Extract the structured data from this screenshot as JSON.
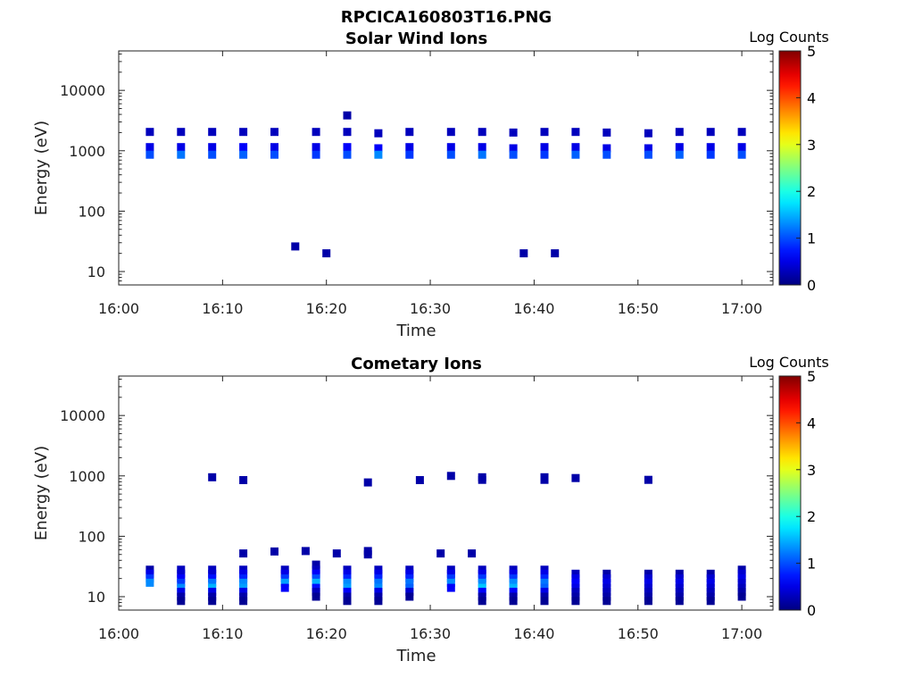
{
  "figure": {
    "title": "RPCICA160803T16.PNG"
  },
  "chart_data": [
    {
      "type": "heatmap",
      "title": "Solar Wind Ions",
      "xlabel": "Time",
      "ylabel": "Energy (eV)",
      "xlim": [
        "16:00",
        "17:03"
      ],
      "ylim": [
        6,
        45000
      ],
      "yscale": "log",
      "x_ticks": [
        "16:00",
        "16:10",
        "16:20",
        "16:30",
        "16:40",
        "16:50",
        "17:00"
      ],
      "y_ticks": [
        "10",
        "100",
        "1000",
        "10000"
      ],
      "colorbar": {
        "label": "Log Counts",
        "min": 0,
        "max": 5,
        "ticks": [
          "0",
          "1",
          "2",
          "3",
          "4",
          "5"
        ],
        "colormap": "jet"
      },
      "cells": [
        {
          "t": "16:03",
          "e": [
            2050,
            1150
          ],
          "v": [
            0.3,
            0.5
          ]
        },
        {
          "t": "16:03",
          "e": [
            860
          ],
          "v": [
            1.0
          ]
        },
        {
          "t": "16:06",
          "e": [
            2050,
            1150
          ],
          "v": [
            0.3,
            0.5
          ]
        },
        {
          "t": "16:06",
          "e": [
            860
          ],
          "v": [
            1.2
          ]
        },
        {
          "t": "16:09",
          "e": [
            2050,
            1150
          ],
          "v": [
            0.3,
            0.5
          ]
        },
        {
          "t": "16:09",
          "e": [
            860
          ],
          "v": [
            1.0
          ]
        },
        {
          "t": "16:12",
          "e": [
            2050,
            1150
          ],
          "v": [
            0.3,
            0.6
          ]
        },
        {
          "t": "16:12",
          "e": [
            860
          ],
          "v": [
            1.1
          ]
        },
        {
          "t": "16:15",
          "e": [
            2050,
            1150
          ],
          "v": [
            0.3,
            0.5
          ]
        },
        {
          "t": "16:15",
          "e": [
            860
          ],
          "v": [
            1.0
          ]
        },
        {
          "t": "16:19",
          "e": [
            2050,
            1150
          ],
          "v": [
            0.3,
            0.5
          ]
        },
        {
          "t": "16:19",
          "e": [
            860
          ],
          "v": [
            0.9
          ]
        },
        {
          "t": "16:22",
          "e": [
            3850
          ],
          "v": [
            0.2
          ]
        },
        {
          "t": "16:22",
          "e": [
            2050,
            1150
          ],
          "v": [
            0.3,
            0.6
          ]
        },
        {
          "t": "16:22",
          "e": [
            860
          ],
          "v": [
            1.0
          ]
        },
        {
          "t": "16:25",
          "e": [
            1950,
            1100
          ],
          "v": [
            0.3,
            0.6
          ]
        },
        {
          "t": "16:25",
          "e": [
            860
          ],
          "v": [
            1.3
          ]
        },
        {
          "t": "16:28",
          "e": [
            2050,
            1150
          ],
          "v": [
            0.3,
            0.5
          ]
        },
        {
          "t": "16:28",
          "e": [
            860
          ],
          "v": [
            0.9
          ]
        },
        {
          "t": "16:32",
          "e": [
            2050,
            1150
          ],
          "v": [
            0.3,
            0.5
          ]
        },
        {
          "t": "16:32",
          "e": [
            860
          ],
          "v": [
            1.0
          ]
        },
        {
          "t": "16:35",
          "e": [
            2050,
            1150
          ],
          "v": [
            0.3,
            0.5
          ]
        },
        {
          "t": "16:35",
          "e": [
            860
          ],
          "v": [
            1.2
          ]
        },
        {
          "t": "16:38",
          "e": [
            2000,
            1100
          ],
          "v": [
            0.3,
            0.5
          ]
        },
        {
          "t": "16:38",
          "e": [
            860
          ],
          "v": [
            1.0
          ]
        },
        {
          "t": "16:41",
          "e": [
            2050,
            1150
          ],
          "v": [
            0.3,
            0.5
          ]
        },
        {
          "t": "16:41",
          "e": [
            860
          ],
          "v": [
            0.9
          ]
        },
        {
          "t": "16:44",
          "e": [
            2050,
            1150
          ],
          "v": [
            0.3,
            0.5
          ]
        },
        {
          "t": "16:44",
          "e": [
            860
          ],
          "v": [
            1.1
          ]
        },
        {
          "t": "16:47",
          "e": [
            2000,
            1100
          ],
          "v": [
            0.3,
            0.5
          ]
        },
        {
          "t": "16:47",
          "e": [
            860
          ],
          "v": [
            1.0
          ]
        },
        {
          "t": "16:51",
          "e": [
            1950,
            1100
          ],
          "v": [
            0.3,
            0.5
          ]
        },
        {
          "t": "16:51",
          "e": [
            860
          ],
          "v": [
            1.0
          ]
        },
        {
          "t": "16:54",
          "e": [
            2050,
            1150
          ],
          "v": [
            0.3,
            0.5
          ]
        },
        {
          "t": "16:54",
          "e": [
            860
          ],
          "v": [
            1.1
          ]
        },
        {
          "t": "16:57",
          "e": [
            2050,
            1150
          ],
          "v": [
            0.3,
            0.5
          ]
        },
        {
          "t": "16:57",
          "e": [
            860
          ],
          "v": [
            0.9
          ]
        },
        {
          "t": "17:00",
          "e": [
            2050,
            1150
          ],
          "v": [
            0.3,
            0.5
          ]
        },
        {
          "t": "17:00",
          "e": [
            860
          ],
          "v": [
            1.0
          ]
        },
        {
          "t": "16:17",
          "e": [
            26
          ],
          "v": [
            0.2
          ]
        },
        {
          "t": "16:20",
          "e": [
            20
          ],
          "v": [
            0.2
          ]
        },
        {
          "t": "16:39",
          "e": [
            20
          ],
          "v": [
            0.2
          ]
        },
        {
          "t": "16:42",
          "e": [
            20
          ],
          "v": [
            0.2
          ]
        }
      ]
    },
    {
      "type": "heatmap",
      "title": "Cometary Ions",
      "xlabel": "Time",
      "ylabel": "Energy (eV)",
      "xlim": [
        "16:00",
        "17:03"
      ],
      "ylim": [
        6,
        45000
      ],
      "yscale": "log",
      "x_ticks": [
        "16:00",
        "16:10",
        "16:20",
        "16:30",
        "16:40",
        "16:50",
        "17:00"
      ],
      "y_ticks": [
        "10",
        "100",
        "1000",
        "10000"
      ],
      "colorbar": {
        "label": "Log Counts",
        "min": 0,
        "max": 5,
        "ticks": [
          "0",
          "1",
          "2",
          "3",
          "4",
          "5"
        ],
        "colormap": "jet"
      },
      "cells": [
        {
          "t": "16:03",
          "e": [
            28,
            24,
            20,
            17
          ],
          "v": [
            0.2,
            0.5,
            0.9,
            1.3
          ]
        },
        {
          "t": "16:06",
          "e": [
            28,
            24,
            20,
            17,
            14,
            12,
            10,
            8.5
          ],
          "v": [
            0.3,
            0.4,
            0.6,
            0.9,
            1.3,
            0.5,
            0.2,
            0.1
          ]
        },
        {
          "t": "16:09",
          "e": [
            28,
            24,
            20,
            17,
            14,
            12,
            10,
            8.5
          ],
          "v": [
            0.3,
            0.4,
            0.7,
            1.2,
            1.5,
            0.5,
            0.2,
            0.1
          ]
        },
        {
          "t": "16:12",
          "e": [
            28,
            24,
            20,
            17,
            14,
            12,
            10,
            8.5
          ],
          "v": [
            0.3,
            0.5,
            0.8,
            1.3,
            1.4,
            0.5,
            0.2,
            0.1
          ]
        },
        {
          "t": "16:16",
          "e": [
            28,
            24,
            20,
            17,
            14
          ],
          "v": [
            0.3,
            0.5,
            0.9,
            1.4,
            0.6
          ]
        },
        {
          "t": "16:19",
          "e": [
            34,
            28,
            24,
            20,
            17,
            14,
            12,
            10
          ],
          "v": [
            0.2,
            0.3,
            0.6,
            1.0,
            1.5,
            0.7,
            0.3,
            0.1
          ]
        },
        {
          "t": "16:22",
          "e": [
            28,
            24,
            20,
            17,
            14,
            12,
            10,
            8.5
          ],
          "v": [
            0.3,
            0.5,
            0.8,
            1.3,
            1.4,
            0.6,
            0.2,
            0.1
          ]
        },
        {
          "t": "16:25",
          "e": [
            28,
            24,
            20,
            17,
            14,
            12,
            10,
            8.5
          ],
          "v": [
            0.3,
            0.5,
            0.8,
            1.2,
            1.3,
            0.5,
            0.2,
            0.1
          ]
        },
        {
          "t": "16:28",
          "e": [
            28,
            24,
            20,
            17,
            14,
            12,
            10
          ],
          "v": [
            0.3,
            0.5,
            0.8,
            1.2,
            1.1,
            0.4,
            0.1
          ]
        },
        {
          "t": "16:32",
          "e": [
            28,
            24,
            20,
            17,
            14
          ],
          "v": [
            0.3,
            0.5,
            0.9,
            1.3,
            0.6
          ]
        },
        {
          "t": "16:35",
          "e": [
            28,
            24,
            20,
            17,
            14,
            12,
            10,
            8.5
          ],
          "v": [
            0.3,
            0.5,
            0.9,
            1.3,
            1.6,
            0.6,
            0.2,
            0.1
          ]
        },
        {
          "t": "16:38",
          "e": [
            28,
            24,
            20,
            17,
            14,
            12,
            10,
            8.5
          ],
          "v": [
            0.3,
            0.5,
            0.9,
            1.3,
            1.5,
            0.6,
            0.2,
            0.1
          ]
        },
        {
          "t": "16:41",
          "e": [
            28,
            24,
            20,
            17,
            14,
            12,
            10,
            8.5
          ],
          "v": [
            0.3,
            0.5,
            0.8,
            1.2,
            1.1,
            0.5,
            0.2,
            0.1
          ]
        },
        {
          "t": "16:44",
          "e": [
            24,
            20,
            17,
            14,
            12,
            10,
            8.5
          ],
          "v": [
            0.3,
            0.5,
            0.6,
            0.5,
            0.3,
            0.2,
            0.1
          ]
        },
        {
          "t": "16:47",
          "e": [
            24,
            20,
            17,
            14,
            12,
            10,
            8.5
          ],
          "v": [
            0.2,
            0.4,
            0.5,
            0.4,
            0.3,
            0.2,
            0.1
          ]
        },
        {
          "t": "16:51",
          "e": [
            24,
            20,
            17,
            14,
            12,
            10,
            8.5
          ],
          "v": [
            0.2,
            0.4,
            0.5,
            0.4,
            0.3,
            0.2,
            0.1
          ]
        },
        {
          "t": "16:54",
          "e": [
            24,
            20,
            17,
            14,
            12,
            10,
            8.5
          ],
          "v": [
            0.2,
            0.4,
            0.5,
            0.4,
            0.3,
            0.2,
            0.1
          ]
        },
        {
          "t": "16:57",
          "e": [
            24,
            20,
            17,
            14,
            12,
            10,
            8.5
          ],
          "v": [
            0.2,
            0.4,
            0.5,
            0.4,
            0.3,
            0.2,
            0.1
          ]
        },
        {
          "t": "17:00",
          "e": [
            28,
            24,
            20,
            17,
            14,
            12,
            10
          ],
          "v": [
            0.2,
            0.4,
            0.5,
            0.4,
            0.3,
            0.2,
            0.1
          ]
        },
        {
          "t": "16:09",
          "e": [
            950
          ],
          "v": [
            0.2
          ]
        },
        {
          "t": "16:12",
          "e": [
            850
          ],
          "v": [
            0.2
          ]
        },
        {
          "t": "16:12",
          "e": [
            52
          ],
          "v": [
            0.2
          ]
        },
        {
          "t": "16:15",
          "e": [
            56
          ],
          "v": [
            0.2
          ]
        },
        {
          "t": "16:18",
          "e": [
            57
          ],
          "v": [
            0.2
          ]
        },
        {
          "t": "16:21",
          "e": [
            52
          ],
          "v": [
            0.2
          ]
        },
        {
          "t": "16:24",
          "e": [
            57,
            50
          ],
          "v": [
            0.2,
            0.2
          ]
        },
        {
          "t": "16:24",
          "e": [
            780
          ],
          "v": [
            0.2
          ]
        },
        {
          "t": "16:29",
          "e": [
            850
          ],
          "v": [
            0.2
          ]
        },
        {
          "t": "16:31",
          "e": [
            52
          ],
          "v": [
            0.2
          ]
        },
        {
          "t": "16:32",
          "e": [
            1000
          ],
          "v": [
            0.2
          ]
        },
        {
          "t": "16:34",
          "e": [
            52
          ],
          "v": [
            0.2
          ]
        },
        {
          "t": "16:35",
          "e": [
            950,
            860
          ],
          "v": [
            0.2,
            0.2
          ]
        },
        {
          "t": "16:41",
          "e": [
            950,
            860
          ],
          "v": [
            0.2,
            0.2
          ]
        },
        {
          "t": "16:44",
          "e": [
            920
          ],
          "v": [
            0.2
          ]
        },
        {
          "t": "16:51",
          "e": [
            860
          ],
          "v": [
            0.2
          ]
        }
      ]
    }
  ]
}
